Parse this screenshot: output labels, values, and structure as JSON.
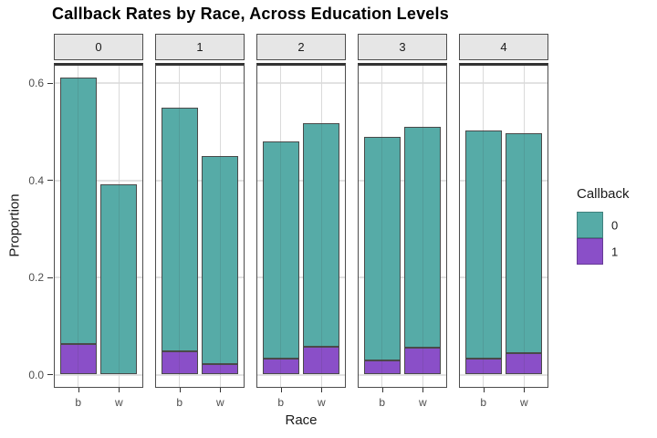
{
  "title": "Callback Rates by Race, Across Education Levels",
  "y_axis": {
    "label": "Proportion",
    "ticks": [
      "0.0",
      "0.2",
      "0.4",
      "0.6"
    ]
  },
  "x_axis": {
    "label": "Race",
    "categories": [
      "b",
      "w"
    ]
  },
  "legend": {
    "title": "Callback",
    "entries": [
      {
        "label": "0",
        "color": "#56aba7"
      },
      {
        "label": "1",
        "color": "#8a4fc8"
      }
    ]
  },
  "chart_data": {
    "type": "bar",
    "stacked": true,
    "title": "Callback Rates by Race, Across Education Levels",
    "xlabel": "Race",
    "ylabel": "Proportion",
    "facet_variable": "education level",
    "categories": [
      "b",
      "w"
    ],
    "breaks": [
      0.0,
      0.2,
      0.4,
      0.6
    ],
    "ylim": [
      -0.031,
      0.643
    ],
    "grid": true,
    "legend_position": "right",
    "colors": {
      "callback0": "#56aba7",
      "callback1": "#8a4fc8",
      "bar_border": "#4a4a4a"
    },
    "facets": [
      {
        "label": "0",
        "bars": [
          {
            "x": "b",
            "callback0": 0.548,
            "callback1": 0.063,
            "total": 0.611
          },
          {
            "x": "w",
            "callback0": 0.392,
            "callback1": 0.0,
            "total": 0.392
          }
        ]
      },
      {
        "label": "1",
        "bars": [
          {
            "x": "b",
            "callback0": 0.502,
            "callback1": 0.048,
            "total": 0.55
          },
          {
            "x": "w",
            "callback0": 0.428,
            "callback1": 0.022,
            "total": 0.45
          }
        ]
      },
      {
        "label": "2",
        "bars": [
          {
            "x": "b",
            "callback0": 0.447,
            "callback1": 0.033,
            "total": 0.48
          },
          {
            "x": "w",
            "callback0": 0.46,
            "callback1": 0.058,
            "total": 0.518
          }
        ]
      },
      {
        "label": "3",
        "bars": [
          {
            "x": "b",
            "callback0": 0.461,
            "callback1": 0.029,
            "total": 0.49
          },
          {
            "x": "w",
            "callback0": 0.455,
            "callback1": 0.055,
            "total": 0.51
          }
        ]
      },
      {
        "label": "4",
        "bars": [
          {
            "x": "b",
            "callback0": 0.47,
            "callback1": 0.033,
            "total": 0.503
          },
          {
            "x": "w",
            "callback0": 0.453,
            "callback1": 0.044,
            "total": 0.497
          }
        ]
      }
    ]
  }
}
